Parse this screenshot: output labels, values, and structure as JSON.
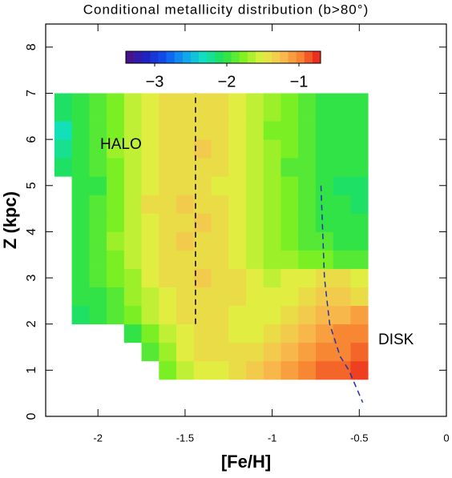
{
  "chart_data": {
    "type": "heatmap",
    "title": "Conditional metallicity distribution (b>80°)",
    "x_label": "[Fe/H]",
    "y_label": "Z (kpc)",
    "xlim": [
      -2.3,
      0
    ],
    "ylim": [
      0,
      8.5
    ],
    "xticks": [
      -2,
      -1.5,
      -1,
      -0.5,
      0
    ],
    "yticks": [
      0,
      1,
      2,
      3,
      4,
      5,
      6,
      7,
      8
    ],
    "xbins": [
      -2.25,
      -2.15,
      -2.05,
      -1.95,
      -1.85,
      -1.75,
      -1.65,
      -1.55,
      -1.45,
      -1.35,
      -1.25,
      -1.15,
      -1.05,
      -0.95,
      -0.85,
      -0.75,
      -0.65,
      -0.55,
      -0.45
    ],
    "ybins": [
      0.8,
      1.2,
      1.6,
      2.0,
      2.4,
      2.8,
      3.2,
      3.6,
      4.0,
      4.4,
      4.8,
      5.2,
      5.6,
      6.0,
      6.4,
      7.0
    ],
    "values": [
      [
        null,
        null,
        null,
        null,
        null,
        null,
        -1.8,
        -1.6,
        -1.5,
        -1.5,
        -1.4,
        -1.3,
        -1.2,
        -1.1,
        -1.0,
        -0.9,
        -0.9,
        -0.8
      ],
      [
        null,
        null,
        null,
        null,
        null,
        -1.9,
        -1.7,
        -1.5,
        -1.4,
        -1.4,
        -1.4,
        -1.4,
        -1.3,
        -1.2,
        -1.1,
        -1.0,
        -1.0,
        -0.9
      ],
      [
        null,
        null,
        null,
        null,
        -2.0,
        -1.8,
        -1.6,
        -1.5,
        -1.4,
        -1.4,
        -1.5,
        -1.5,
        -1.4,
        -1.3,
        -1.2,
        -1.1,
        -1.0,
        -1.0
      ],
      [
        null,
        -2.1,
        -2.0,
        -1.9,
        -1.8,
        -1.6,
        -1.5,
        -1.4,
        -1.4,
        -1.4,
        -1.5,
        -1.5,
        -1.5,
        -1.4,
        -1.3,
        -1.2,
        -1.2,
        -1.1
      ],
      [
        null,
        -2.0,
        -2.0,
        -1.9,
        -1.7,
        -1.6,
        -1.5,
        -1.4,
        -1.4,
        -1.4,
        -1.4,
        -1.5,
        -1.5,
        -1.5,
        -1.4,
        -1.3,
        -1.3,
        -1.4
      ],
      [
        null,
        -2.0,
        -1.9,
        -1.8,
        -1.7,
        -1.5,
        -1.4,
        -1.4,
        -1.3,
        -1.4,
        -1.4,
        -1.5,
        -1.6,
        -1.5,
        -1.5,
        -1.4,
        -1.4,
        -1.5
      ],
      [
        null,
        -2.0,
        -1.9,
        -1.8,
        -1.6,
        -1.5,
        -1.4,
        -1.4,
        -1.4,
        -1.4,
        -1.5,
        -1.6,
        -1.7,
        -1.7,
        -1.8,
        -1.8,
        -1.9,
        -1.9
      ],
      [
        null,
        -2.0,
        -1.9,
        -1.7,
        -1.6,
        -1.5,
        -1.4,
        -1.3,
        -1.4,
        -1.4,
        -1.5,
        -1.6,
        -1.7,
        -1.8,
        -1.9,
        -1.9,
        -2.0,
        -2.0
      ],
      [
        null,
        -2.0,
        -1.9,
        -1.8,
        -1.6,
        -1.5,
        -1.4,
        -1.4,
        -1.3,
        -1.4,
        -1.5,
        -1.6,
        -1.7,
        -1.8,
        -1.9,
        -2.0,
        -2.0,
        -2.0
      ],
      [
        null,
        -2.0,
        -1.9,
        -1.8,
        -1.6,
        -1.4,
        -1.4,
        -1.3,
        -1.4,
        -1.4,
        -1.5,
        -1.6,
        -1.7,
        -1.8,
        -1.9,
        -2.0,
        -2.0,
        -2.1
      ],
      [
        null,
        -2.0,
        -2.0,
        -1.8,
        -1.6,
        -1.5,
        -1.4,
        -1.4,
        -1.4,
        -1.5,
        -1.5,
        -1.6,
        -1.7,
        -1.8,
        -1.9,
        -2.0,
        -2.1,
        -2.1
      ],
      [
        -2.1,
        -2.0,
        -1.9,
        -1.8,
        -1.6,
        -1.5,
        -1.4,
        -1.4,
        -1.4,
        -1.4,
        -1.5,
        -1.6,
        -1.7,
        -1.9,
        -1.9,
        -2.0,
        -2.0,
        -2.0
      ],
      [
        -2.2,
        -2.0,
        -1.9,
        -1.7,
        -1.6,
        -1.5,
        -1.4,
        -1.4,
        -1.3,
        -1.4,
        -1.5,
        -1.6,
        -1.7,
        -1.8,
        -1.9,
        -2.0,
        -2.0,
        -2.0
      ],
      [
        -2.3,
        -2.0,
        -1.9,
        -1.8,
        -1.6,
        -1.5,
        -1.4,
        -1.4,
        -1.4,
        -1.4,
        -1.5,
        -1.6,
        -1.8,
        -1.8,
        -1.9,
        -2.0,
        -2.0,
        -2.0
      ],
      [
        -2.1,
        -2.0,
        -1.9,
        -1.8,
        -1.6,
        -1.5,
        -1.4,
        -1.4,
        -1.4,
        -1.4,
        -1.5,
        -1.6,
        -1.7,
        -1.8,
        -1.9,
        -2.0,
        -2.0,
        -2.0
      ]
    ],
    "clim": [
      -3.4,
      -0.7
    ],
    "cticks": [
      {
        "value": -3,
        "label": "−3"
      },
      {
        "value": -2,
        "label": "−2"
      },
      {
        "value": -1,
        "label": "−1"
      }
    ],
    "colormap": [
      "#501080",
      "#2020c0",
      "#1050f0",
      "#10a0f0",
      "#10e0c0",
      "#20e050",
      "#80f020",
      "#e0f040",
      "#f8c050",
      "#f88030",
      "#e81818"
    ],
    "annotations": [
      "HALO",
      "DISK"
    ],
    "lines": [
      {
        "color": "#000000",
        "x": [
          -1.44,
          -1.44
        ],
        "y": [
          2,
          7
        ]
      },
      {
        "color": "#2233aa",
        "x": [
          -0.72,
          -0.71,
          -0.7,
          -0.67,
          -0.61,
          -0.56,
          -0.48
        ],
        "y": [
          5,
          4,
          3,
          2,
          1.3,
          1,
          0.3
        ]
      }
    ]
  }
}
